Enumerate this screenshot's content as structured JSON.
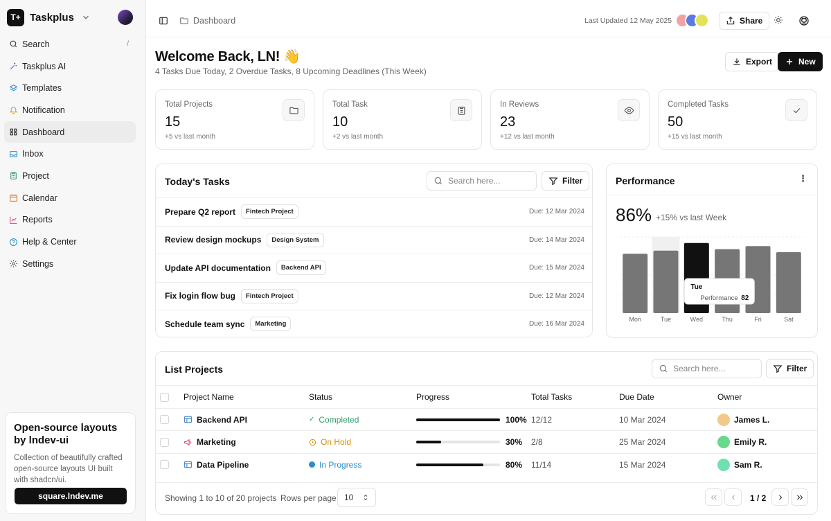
{
  "app": {
    "name": "Taskplus",
    "logo_text": "T+"
  },
  "sidebar": {
    "search_shortcut": "/",
    "items": [
      {
        "label": "Search",
        "icon": "search-icon"
      },
      {
        "label": "Taskplus AI",
        "icon": "sparkle-icon"
      },
      {
        "label": "Templates",
        "icon": "layers-icon"
      },
      {
        "label": "Notification",
        "icon": "bell-icon"
      },
      {
        "label": "Dashboard",
        "icon": "grid-icon",
        "active": true
      },
      {
        "label": "Inbox",
        "icon": "inbox-icon"
      },
      {
        "label": "Project",
        "icon": "clipboard-icon"
      },
      {
        "label": "Calendar",
        "icon": "calendar-icon"
      },
      {
        "label": "Reports",
        "icon": "chart-line-icon"
      },
      {
        "label": "Help & Center",
        "icon": "help-icon"
      },
      {
        "label": "Settings",
        "icon": "gear-icon"
      }
    ],
    "promo": {
      "title": "Open-source layouts by lndev-ui",
      "description": "Collection of beautifully crafted open-source layouts UI built with shadcn/ui.",
      "link": "square.lndev.me"
    }
  },
  "topbar": {
    "breadcrumb": "Dashboard",
    "last_updated": "Last Updated 12 May 2025",
    "share_label": "Share"
  },
  "header": {
    "title": "Welcome Back, LN! 👋",
    "subtitle": "4 Tasks Due Today, 2 Overdue Tasks, 8 Upcoming Deadlines (This Week)",
    "export_label": "Export",
    "new_label": "New"
  },
  "stats": [
    {
      "label": "Total Projects",
      "value": "15",
      "delta": "+5 vs last month",
      "icon": "folder-icon"
    },
    {
      "label": "Total Task",
      "value": "10",
      "delta": "+2 vs last month",
      "icon": "clipboard-icon"
    },
    {
      "label": "In Reviews",
      "value": "23",
      "delta": "+12 vs last month",
      "icon": "eye-icon"
    },
    {
      "label": "Completed Tasks",
      "value": "50",
      "delta": "+15 vs last month",
      "icon": "check-icon"
    }
  ],
  "tasks": {
    "title": "Today's Tasks",
    "search_placeholder": "Search here...",
    "filter_label": "Filter",
    "items": [
      {
        "name": "Prepare Q2 report",
        "tag": "Fintech Project",
        "due": "Due: 12 Mar 2024"
      },
      {
        "name": "Review design mockups",
        "tag": "Design System",
        "due": "Due: 14 Mar 2024"
      },
      {
        "name": "Update API documentation",
        "tag": "Backend API",
        "due": "Due: 15 Mar 2024"
      },
      {
        "name": "Fix login flow bug",
        "tag": "Fintech Project",
        "due": "Due: 12 Mar 2024"
      },
      {
        "name": "Schedule team sync",
        "tag": "Marketing",
        "due": "Due: 16 Mar 2024"
      }
    ]
  },
  "performance": {
    "title": "Performance",
    "value": "86%",
    "delta": "+15% vs last Week",
    "tooltip": {
      "day": "Tue",
      "label": "Performance",
      "value": "82"
    }
  },
  "chart_data": {
    "type": "bar",
    "categories": [
      "Mon",
      "Tue",
      "Wed",
      "Thu",
      "Fri",
      "Sat"
    ],
    "series": [
      {
        "name": "Performance",
        "values": [
          78,
          82,
          92,
          84,
          88,
          80
        ]
      }
    ],
    "highlighted": "Wed",
    "ylim": [
      0,
      100
    ],
    "grid": true,
    "colors": {
      "bar": "#767676",
      "highlight": "#111111",
      "hover_band": "#f0f0f0"
    }
  },
  "projects": {
    "title": "List Projects",
    "search_placeholder": "Search here...",
    "filter_label": "Filter",
    "columns": [
      "Project Name",
      "Status",
      "Progress",
      "Total Tasks",
      "Due Date",
      "Owner"
    ],
    "rows": [
      {
        "name": "Backend API",
        "icon": "layout-icon",
        "icon_color": "#3b82c4",
        "status": "Completed",
        "status_color": "#2f9e6a",
        "status_icon": "check-icon",
        "progress": 100,
        "progress_label": "100%",
        "tasks": "12/12",
        "due": "10 Mar 2024",
        "owner": "James L.",
        "avatar_color": "#f3c98b"
      },
      {
        "name": "Marketing",
        "icon": "megaphone-icon",
        "icon_color": "#d9467a",
        "status": "On Hold",
        "status_color": "#d98a00",
        "status_icon": "clock-icon",
        "progress": 30,
        "progress_label": "30%",
        "tasks": "2/8",
        "due": "25 Mar 2024",
        "owner": "Emily R.",
        "avatar_color": "#67d98a"
      },
      {
        "name": "Data Pipeline",
        "icon": "layout-icon",
        "icon_color": "#3b82c4",
        "status": "In Progress",
        "status_color": "#2a8fc9",
        "status_icon": "dot-icon",
        "progress": 80,
        "progress_label": "80%",
        "tasks": "11/14",
        "due": "15 Mar 2024",
        "owner": "Sam R.",
        "avatar_color": "#6fe0b0"
      }
    ],
    "footer": {
      "showing": "Showing 1 to 10 of 20 projects",
      "rows_label": "Rows per page",
      "rows_value": "10",
      "page": "1 / 2"
    }
  }
}
